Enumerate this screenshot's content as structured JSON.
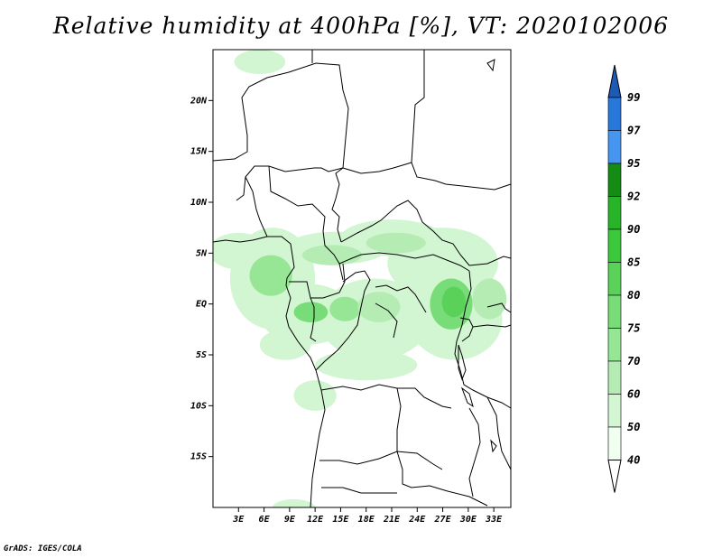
{
  "title": "Relative humidity at 400hPa [%], VT: 2020102006",
  "credit": "GrADS: IGES/COLA",
  "map": {
    "lon_range": [
      0,
      35
    ],
    "lat_range": [
      -20,
      25
    ],
    "lon_ticks": [
      {
        "value": 3,
        "label": "3E"
      },
      {
        "value": 6,
        "label": "6E"
      },
      {
        "value": 9,
        "label": "9E"
      },
      {
        "value": 12,
        "label": "12E"
      },
      {
        "value": 15,
        "label": "15E"
      },
      {
        "value": 18,
        "label": "18E"
      },
      {
        "value": 21,
        "label": "21E"
      },
      {
        "value": 24,
        "label": "24E"
      },
      {
        "value": 27,
        "label": "27E"
      },
      {
        "value": 30,
        "label": "30E"
      },
      {
        "value": 33,
        "label": "33E"
      }
    ],
    "lat_ticks": [
      {
        "value": 20,
        "label": "20N"
      },
      {
        "value": 15,
        "label": "15N"
      },
      {
        "value": 10,
        "label": "10N"
      },
      {
        "value": 5,
        "label": "5N"
      },
      {
        "value": 0,
        "label": "EQ"
      },
      {
        "value": -5,
        "label": "5S"
      },
      {
        "value": -10,
        "label": "10S"
      },
      {
        "value": -15,
        "label": "15S"
      }
    ]
  },
  "colorbar": {
    "levels": [
      "40",
      "50",
      "60",
      "70",
      "75",
      "80",
      "85",
      "90",
      "92",
      "95",
      "97",
      "99"
    ],
    "colors": [
      "#f0fff0",
      "#d2f5d2",
      "#b4ecb4",
      "#96e696",
      "#78dc78",
      "#5ad25a",
      "#3cc83c",
      "#28b428",
      "#148c14",
      "#4696f0",
      "#2878dc",
      "#1e5ab4"
    ],
    "below_color": "#ffffff",
    "above_color": "#1e5ab4"
  },
  "humidity_patches": [
    {
      "lon": 5.5,
      "lat": 23.8,
      "rx": 3.0,
      "ry": 1.2,
      "level": 1
    },
    {
      "lon": 9.5,
      "lat": -20.0,
      "rx": 2.5,
      "ry": 0.8,
      "level": 1
    },
    {
      "lon": 3.0,
      "lat": 5.2,
      "rx": 3.5,
      "ry": 1.8,
      "level": 1
    },
    {
      "lon": 7.0,
      "lat": 2.5,
      "rx": 5.0,
      "ry": 5.0,
      "level": 1
    },
    {
      "lon": 14.5,
      "lat": 5.5,
      "rx": 6.0,
      "ry": 1.6,
      "level": 1
    },
    {
      "lon": 21.0,
      "lat": 6.5,
      "rx": 6.0,
      "ry": 1.8,
      "level": 1
    },
    {
      "lon": 27.0,
      "lat": 4.0,
      "rx": 6.5,
      "ry": 3.5,
      "level": 1
    },
    {
      "lon": 11.0,
      "lat": -1.0,
      "rx": 5.5,
      "ry": 3.0,
      "level": 1
    },
    {
      "lon": 19.0,
      "lat": -1.5,
      "rx": 6.5,
      "ry": 4.0,
      "level": 1
    },
    {
      "lon": 28.5,
      "lat": -1.5,
      "rx": 5.5,
      "ry": 4.0,
      "level": 1
    },
    {
      "lon": 18.0,
      "lat": -6.0,
      "rx": 6.0,
      "ry": 1.5,
      "level": 1
    },
    {
      "lon": 12.0,
      "lat": -9.0,
      "rx": 2.5,
      "ry": 1.5,
      "level": 1
    },
    {
      "lon": 8.5,
      "lat": -4.0,
      "rx": 3.0,
      "ry": 1.5,
      "level": 1
    },
    {
      "lon": 6.8,
      "lat": 2.8,
      "rx": 2.5,
      "ry": 2.0,
      "level": 3
    },
    {
      "lon": 14.0,
      "lat": 4.8,
      "rx": 3.5,
      "ry": 1.0,
      "level": 2
    },
    {
      "lon": 21.5,
      "lat": 6.0,
      "rx": 3.5,
      "ry": 1.0,
      "level": 2
    },
    {
      "lon": 11.5,
      "lat": -0.8,
      "rx": 2.0,
      "ry": 1.0,
      "level": 4
    },
    {
      "lon": 15.5,
      "lat": -0.5,
      "rx": 1.8,
      "ry": 1.2,
      "level": 3
    },
    {
      "lon": 19.5,
      "lat": -0.3,
      "rx": 2.5,
      "ry": 1.5,
      "level": 2
    },
    {
      "lon": 28.0,
      "lat": 0.0,
      "rx": 2.5,
      "ry": 2.5,
      "level": 4
    },
    {
      "lon": 28.3,
      "lat": 0.2,
      "rx": 1.4,
      "ry": 1.5,
      "level": 5
    },
    {
      "lon": 32.5,
      "lat": 0.5,
      "rx": 2.0,
      "ry": 2.0,
      "level": 2
    }
  ]
}
